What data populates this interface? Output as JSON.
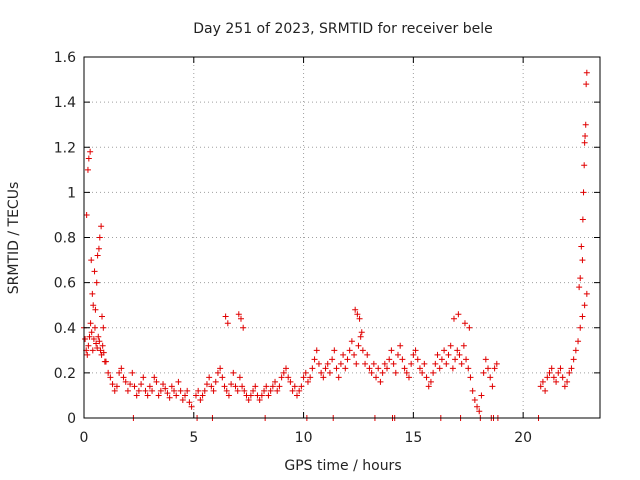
{
  "chart_data": {
    "type": "scatter",
    "title": "Day 251 of 2023, SRMTID for receiver bele",
    "xlabel": "GPS time / hours",
    "ylabel": "SRMTID / TECUs",
    "xlim": [
      0,
      23.5
    ],
    "ylim": [
      0,
      1.6
    ],
    "xticks": [
      0,
      5,
      10,
      15,
      20
    ],
    "xtick_labels": [
      "0",
      "5",
      "10",
      "15",
      "20"
    ],
    "yticks": [
      0,
      0.2,
      0.4,
      0.6,
      0.8,
      1,
      1.2,
      1.4,
      1.6
    ],
    "ytick_labels": [
      "0",
      "0.2",
      "0.4",
      "0.6",
      "0.8",
      "1",
      "1.2",
      "1.4",
      "1.6"
    ],
    "grid": true,
    "marker": "+",
    "color": "#e00000",
    "series": [
      {
        "name": "SRMTID",
        "x": [
          0.0,
          0.05,
          0.1,
          0.15,
          0.2,
          0.25,
          0.3,
          0.35,
          0.4,
          0.45,
          0.5,
          0.55,
          0.6,
          0.65,
          0.7,
          0.75,
          0.8,
          0.85,
          0.9,
          0.95,
          0.12,
          0.18,
          0.22,
          0.28,
          0.33,
          0.38,
          0.42,
          0.48,
          0.52,
          0.58,
          0.62,
          0.68,
          0.72,
          0.78,
          0.82,
          0.88,
          1.0,
          1.1,
          1.2,
          1.3,
          1.4,
          1.5,
          1.6,
          1.7,
          1.8,
          1.9,
          2.0,
          2.1,
          2.2,
          2.3,
          2.4,
          2.5,
          2.6,
          2.7,
          2.8,
          2.9,
          3.0,
          3.1,
          3.2,
          3.3,
          3.4,
          3.5,
          3.6,
          3.7,
          3.8,
          3.9,
          4.0,
          4.1,
          4.2,
          4.3,
          4.4,
          4.5,
          4.6,
          4.7,
          4.8,
          4.9,
          5.1,
          5.2,
          5.3,
          5.4,
          5.5,
          5.6,
          5.7,
          5.8,
          5.9,
          6.0,
          6.1,
          6.2,
          6.3,
          6.4,
          6.5,
          6.6,
          6.7,
          6.8,
          6.9,
          7.0,
          7.1,
          7.2,
          7.3,
          7.4,
          7.5,
          7.6,
          7.7,
          7.8,
          7.9,
          8.0,
          8.1,
          8.2,
          8.3,
          8.4,
          8.5,
          8.6,
          8.7,
          8.8,
          8.9,
          9.0,
          9.1,
          9.2,
          9.3,
          9.4,
          9.5,
          9.6,
          9.7,
          9.8,
          9.9,
          10.0,
          10.1,
          10.2,
          10.3,
          10.4,
          10.5,
          10.6,
          10.7,
          10.8,
          10.9,
          11.0,
          11.1,
          11.2,
          11.3,
          11.4,
          11.5,
          11.6,
          11.7,
          11.8,
          11.9,
          12.0,
          12.1,
          12.2,
          12.3,
          12.4,
          12.5,
          12.6,
          12.7,
          12.8,
          12.9,
          13.0,
          13.1,
          13.2,
          13.3,
          13.4,
          13.5,
          13.6,
          13.7,
          13.8,
          13.9,
          14.0,
          14.1,
          14.2,
          14.3,
          14.4,
          14.5,
          14.6,
          14.7,
          14.8,
          14.9,
          15.0,
          15.1,
          15.2,
          15.3,
          15.4,
          15.5,
          15.6,
          15.7,
          15.8,
          15.9,
          16.0,
          16.1,
          16.2,
          16.3,
          16.4,
          16.5,
          16.6,
          16.7,
          16.8,
          16.9,
          17.0,
          17.1,
          17.2,
          17.3,
          17.4,
          17.5,
          17.6,
          17.7,
          17.8,
          17.9,
          18.0,
          18.1,
          18.2,
          18.3,
          18.4,
          18.5,
          18.6,
          18.7,
          18.8,
          2.25,
          5.15,
          5.85,
          8.25,
          10.15,
          11.35,
          13.25,
          14.05,
          14.15,
          16.25,
          17.15,
          18.05,
          18.55,
          18.65,
          18.85,
          20.7,
          20.8,
          20.9,
          21.0,
          21.1,
          21.2,
          21.3,
          21.4,
          21.5,
          21.6,
          21.7,
          21.8,
          21.9,
          22.0,
          22.1,
          22.2,
          22.3,
          22.4,
          22.5,
          22.6,
          22.7,
          22.8,
          22.9,
          22.55,
          22.6,
          22.65,
          22.7,
          22.72,
          22.75,
          22.78,
          22.8,
          22.82,
          22.85,
          22.87,
          22.9,
          7.05,
          7.15,
          7.25,
          6.45,
          6.55,
          12.35,
          12.45,
          12.55,
          12.65,
          16.85,
          17.05,
          17.35,
          17.55
        ],
        "y": [
          0.4,
          0.35,
          0.3,
          0.28,
          0.32,
          0.36,
          0.42,
          0.38,
          0.3,
          0.35,
          0.4,
          0.33,
          0.31,
          0.36,
          0.34,
          0.3,
          0.28,
          0.32,
          0.29,
          0.25,
          0.9,
          1.1,
          1.15,
          1.18,
          0.7,
          0.55,
          0.5,
          0.65,
          0.48,
          0.6,
          0.72,
          0.75,
          0.8,
          0.85,
          0.45,
          0.4,
          0.25,
          0.2,
          0.18,
          0.15,
          0.12,
          0.14,
          0.2,
          0.22,
          0.18,
          0.16,
          0.12,
          0.15,
          0.2,
          0.14,
          0.1,
          0.12,
          0.15,
          0.18,
          0.12,
          0.1,
          0.14,
          0.12,
          0.18,
          0.16,
          0.1,
          0.12,
          0.15,
          0.13,
          0.11,
          0.09,
          0.14,
          0.12,
          0.1,
          0.16,
          0.12,
          0.08,
          0.1,
          0.12,
          0.07,
          0.05,
          0.1,
          0.12,
          0.08,
          0.1,
          0.12,
          0.15,
          0.18,
          0.14,
          0.12,
          0.16,
          0.2,
          0.22,
          0.18,
          0.14,
          0.12,
          0.1,
          0.15,
          0.2,
          0.14,
          0.12,
          0.18,
          0.14,
          0.12,
          0.1,
          0.08,
          0.1,
          0.12,
          0.14,
          0.1,
          0.08,
          0.1,
          0.12,
          0.14,
          0.1,
          0.12,
          0.14,
          0.16,
          0.12,
          0.14,
          0.18,
          0.2,
          0.22,
          0.18,
          0.16,
          0.12,
          0.14,
          0.1,
          0.12,
          0.14,
          0.18,
          0.2,
          0.16,
          0.18,
          0.22,
          0.26,
          0.3,
          0.24,
          0.2,
          0.18,
          0.22,
          0.24,
          0.2,
          0.26,
          0.3,
          0.22,
          0.18,
          0.24,
          0.28,
          0.22,
          0.26,
          0.3,
          0.34,
          0.28,
          0.24,
          0.32,
          0.36,
          0.3,
          0.24,
          0.28,
          0.22,
          0.2,
          0.24,
          0.18,
          0.22,
          0.16,
          0.2,
          0.24,
          0.22,
          0.26,
          0.3,
          0.24,
          0.2,
          0.28,
          0.32,
          0.26,
          0.22,
          0.2,
          0.18,
          0.24,
          0.28,
          0.3,
          0.26,
          0.22,
          0.2,
          0.24,
          0.18,
          0.14,
          0.16,
          0.2,
          0.24,
          0.28,
          0.22,
          0.26,
          0.3,
          0.24,
          0.28,
          0.32,
          0.22,
          0.26,
          0.3,
          0.28,
          0.24,
          0.32,
          0.26,
          0.22,
          0.18,
          0.12,
          0.08,
          0.05,
          0.03,
          0.1,
          0.2,
          0.26,
          0.22,
          0.18,
          0.14,
          0.22,
          0.24,
          0.0,
          0.0,
          0.0,
          0.0,
          0.0,
          0.0,
          0.0,
          0.0,
          0.0,
          0.0,
          0.0,
          0.0,
          0.0,
          0.0,
          0.0,
          0.0,
          0.14,
          0.16,
          0.12,
          0.18,
          0.2,
          0.22,
          0.18,
          0.16,
          0.2,
          0.22,
          0.18,
          0.14,
          0.16,
          0.2,
          0.22,
          0.26,
          0.3,
          0.34,
          0.4,
          0.45,
          0.5,
          0.55,
          0.58,
          0.62,
          0.76,
          0.7,
          0.88,
          1.0,
          1.12,
          1.22,
          1.25,
          1.3,
          1.48,
          1.53,
          0.46,
          0.44,
          0.4,
          0.45,
          0.42,
          0.48,
          0.46,
          0.44,
          0.38,
          0.44,
          0.46,
          0.42,
          0.4
        ]
      }
    ]
  }
}
